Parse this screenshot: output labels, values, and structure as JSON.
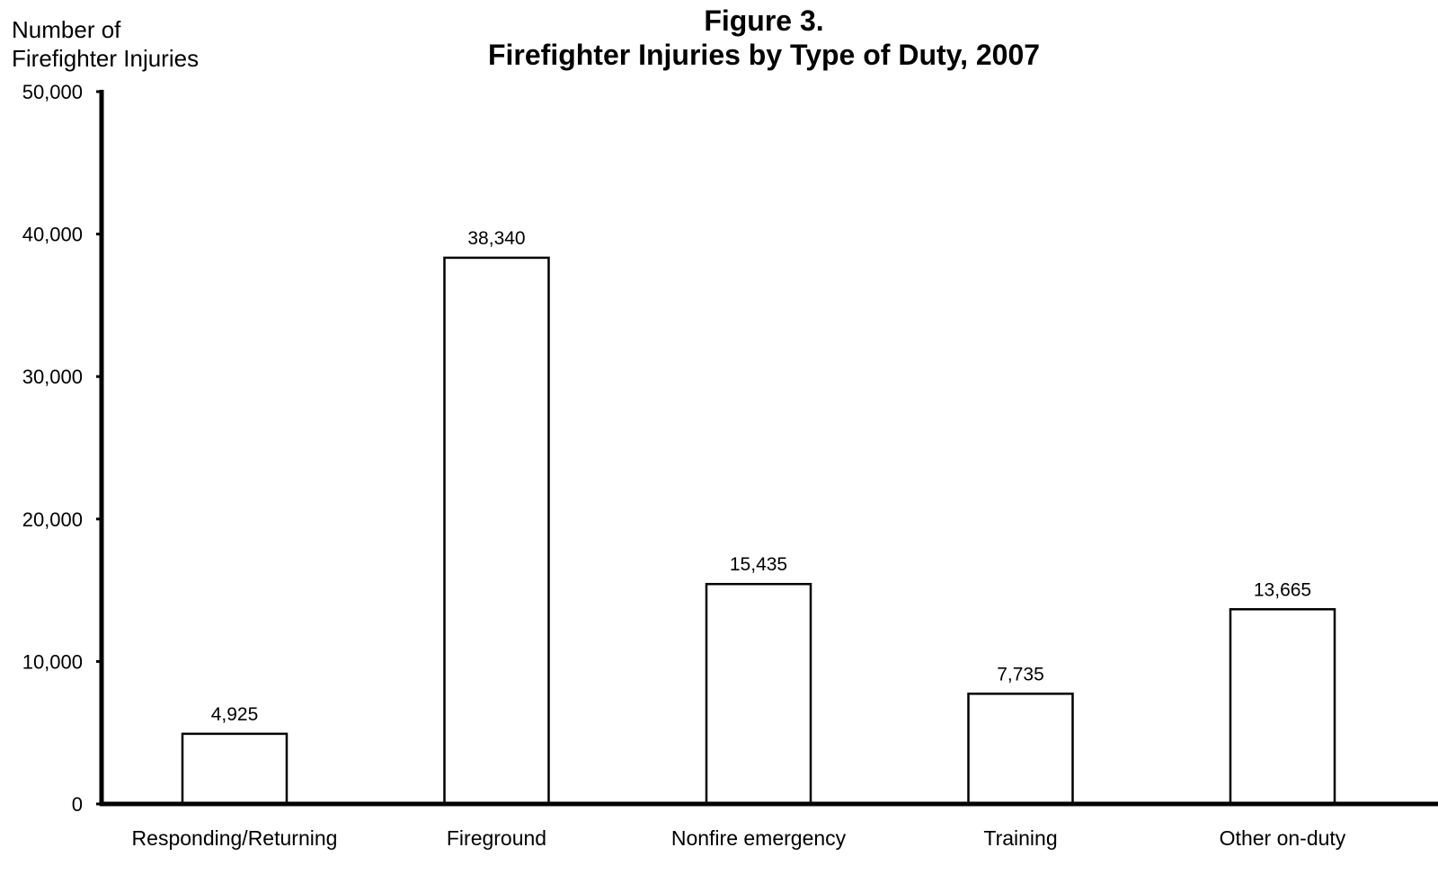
{
  "chart_data": {
    "type": "bar",
    "title": "Figure 3.",
    "subtitle": "Firefighter Injuries by Type of Duty, 2007",
    "ylabel_lines": [
      "Number of",
      "Firefighter Injuries"
    ],
    "xlabel": "",
    "categories": [
      "Responding/Returning",
      "Fireground",
      "Nonfire emergency",
      "Training",
      "Other on-duty"
    ],
    "values": [
      4925,
      38340,
      15435,
      7735,
      13665
    ],
    "data_labels": [
      "4,925",
      "38,340",
      "15,435",
      "7,735",
      "13,665"
    ],
    "ylim": [
      0,
      50000
    ],
    "yticks": [
      0,
      10000,
      20000,
      30000,
      40000,
      50000
    ],
    "ytick_labels": [
      "0",
      "10,000",
      "20,000",
      "30,000",
      "40,000",
      "50,000"
    ],
    "grid": false,
    "legend": "none",
    "bar_fill": "#ffffff",
    "bar_stroke": "#000000"
  }
}
